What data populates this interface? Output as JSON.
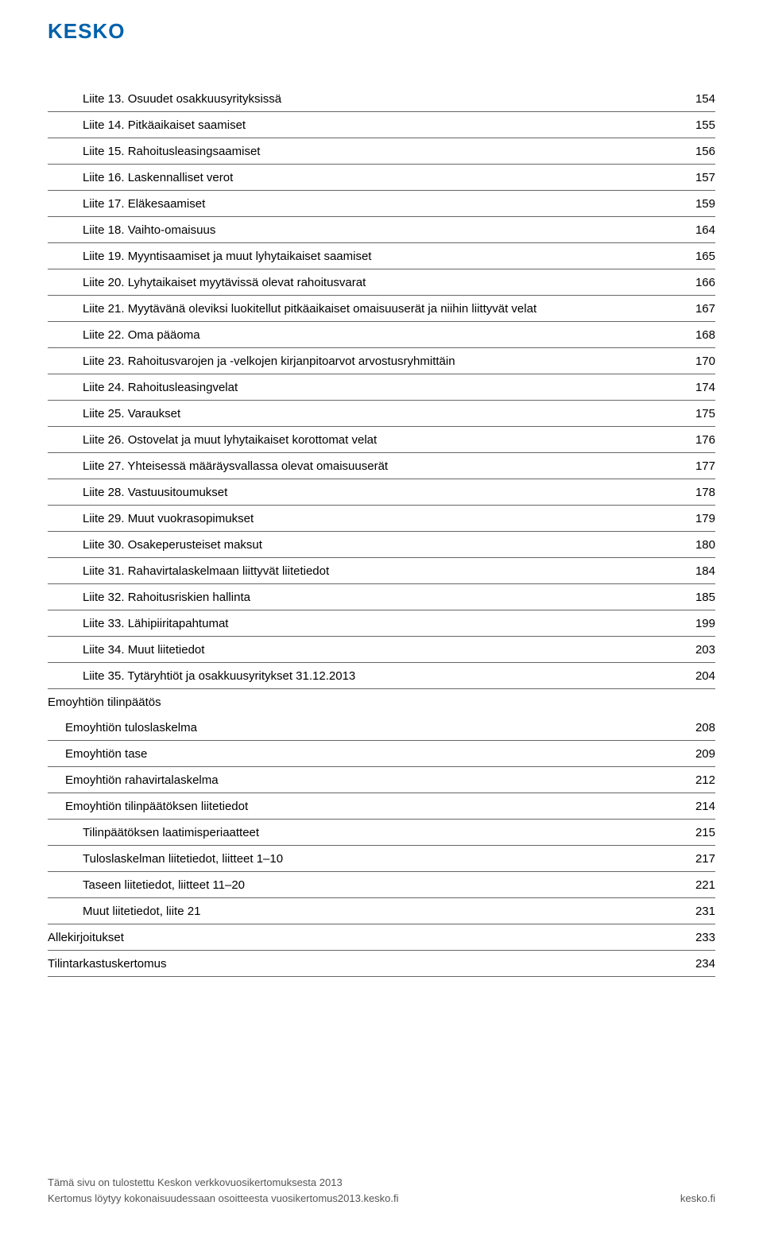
{
  "brand": {
    "name": "KESKO",
    "color": "#0060aa"
  },
  "colors": {
    "text": "#000000",
    "rule": "#666666",
    "footer": "#555555"
  },
  "toc": [
    {
      "indent": 2,
      "label": "Liite 13. Osuudet osakkuusyrityksissä",
      "page": "154"
    },
    {
      "indent": 2,
      "label": "Liite 14. Pitkäaikaiset saamiset",
      "page": "155"
    },
    {
      "indent": 2,
      "label": "Liite 15. Rahoitusleasingsaamiset",
      "page": "156"
    },
    {
      "indent": 2,
      "label": "Liite 16. Laskennalliset verot",
      "page": "157"
    },
    {
      "indent": 2,
      "label": "Liite 17. Eläkesaamiset",
      "page": "159"
    },
    {
      "indent": 2,
      "label": "Liite 18. Vaihto-omaisuus",
      "page": "164"
    },
    {
      "indent": 2,
      "label": "Liite 19. Myyntisaamiset ja muut lyhytaikaiset saamiset",
      "page": "165"
    },
    {
      "indent": 2,
      "label": "Liite 20. Lyhytaikaiset myytävissä olevat rahoitusvarat",
      "page": "166"
    },
    {
      "indent": 2,
      "label": "Liite 21. Myytävänä oleviksi luokitellut pitkäaikaiset omaisuuserät ja niihin liittyvät velat",
      "page": "167"
    },
    {
      "indent": 2,
      "label": "Liite 22. Oma pääoma",
      "page": "168"
    },
    {
      "indent": 2,
      "label": "Liite 23. Rahoitusvarojen ja -velkojen kirjanpitoarvot arvostusryhmittäin",
      "page": "170"
    },
    {
      "indent": 2,
      "label": "Liite 24. Rahoitusleasingvelat",
      "page": "174"
    },
    {
      "indent": 2,
      "label": "Liite 25. Varaukset",
      "page": "175"
    },
    {
      "indent": 2,
      "label": "Liite 26. Ostovelat ja muut lyhytaikaiset korottomat velat",
      "page": "176"
    },
    {
      "indent": 2,
      "label": "Liite 27. Yhteisessä määräysvallassa olevat omaisuuserät",
      "page": "177"
    },
    {
      "indent": 2,
      "label": "Liite 28. Vastuusitoumukset",
      "page": "178"
    },
    {
      "indent": 2,
      "label": "Liite 29. Muut vuokrasopimukset",
      "page": "179"
    },
    {
      "indent": 2,
      "label": "Liite 30. Osakeperusteiset maksut",
      "page": "180"
    },
    {
      "indent": 2,
      "label": "Liite 31. Rahavirtalaskelmaan liittyvät liitetiedot",
      "page": "184"
    },
    {
      "indent": 2,
      "label": "Liite 32. Rahoitusriskien hallinta",
      "page": "185"
    },
    {
      "indent": 2,
      "label": "Liite 33. Lähipiiritapahtumat",
      "page": "199"
    },
    {
      "indent": 2,
      "label": "Liite 34. Muut liitetiedot",
      "page": "203"
    },
    {
      "indent": 2,
      "label": "Liite 35. Tytäryhtiöt ja osakkuusyritykset 31.12.2013",
      "page": "204"
    },
    {
      "indent": 0,
      "label": "Emoyhtiön tilinpäätös",
      "page": ""
    },
    {
      "indent": 1,
      "label": "Emoyhtiön tuloslaskelma",
      "page": "208"
    },
    {
      "indent": 1,
      "label": "Emoyhtiön tase",
      "page": "209"
    },
    {
      "indent": 1,
      "label": "Emoyhtiön rahavirtalaskelma",
      "page": "212"
    },
    {
      "indent": 1,
      "label": "Emoyhtiön tilinpäätöksen liitetiedot",
      "page": "214"
    },
    {
      "indent": 2,
      "label": "Tilinpäätöksen laatimisperiaatteet",
      "page": "215"
    },
    {
      "indent": 2,
      "label": "Tuloslaskelman liitetiedot, liitteet 1–10",
      "page": "217"
    },
    {
      "indent": 2,
      "label": "Taseen liitetiedot, liitteet 11–20",
      "page": "221"
    },
    {
      "indent": 2,
      "label": "Muut liitetiedot, liite 21",
      "page": "231"
    },
    {
      "indent": 0,
      "label": "Allekirjoitukset",
      "page": "233"
    },
    {
      "indent": 0,
      "label": "Tilintarkastuskertomus",
      "page": "234"
    }
  ],
  "footer": {
    "line1": "Tämä sivu on tulostettu Keskon verkkovuosikertomuksesta 2013",
    "line2": "Kertomus löytyy kokonaisuudessaan osoitteesta vuosikertomus2013.kesko.fi",
    "site": "kesko.fi"
  }
}
